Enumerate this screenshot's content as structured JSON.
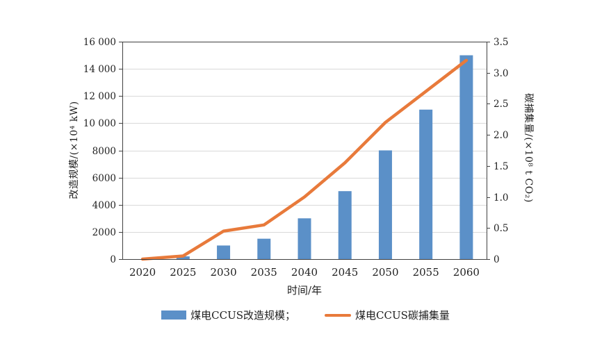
{
  "chart_data": {
    "type": "bar+line dual-axis combo",
    "categories": [
      "2020",
      "2025",
      "2030",
      "2035",
      "2040",
      "2045",
      "2050",
      "2055",
      "2060"
    ],
    "series": [
      {
        "name": "煤电CCUS改造规模；",
        "type": "bar",
        "axis": "left",
        "color": "#5B90C8",
        "values": [
          0,
          200,
          1000,
          1500,
          3000,
          5000,
          8000,
          11000,
          15000
        ]
      },
      {
        "name": "煤电CCUS碳捕集量",
        "type": "line",
        "axis": "right",
        "color": "#E87A3B",
        "values": [
          0,
          0.05,
          0.45,
          0.55,
          1.0,
          1.55,
          2.2,
          2.7,
          3.2
        ]
      }
    ],
    "xlabel": "时间/年",
    "left_axis": {
      "label": "改造规模/(×10⁴ kW)",
      "min": 0,
      "max": 16000,
      "tick_values": [
        0,
        2000,
        4000,
        6000,
        8000,
        10000,
        12000,
        14000,
        16000
      ],
      "tick_labels": [
        "0",
        "2000",
        "4000",
        "6000",
        "8000",
        "10 000",
        "12 000",
        "14 000",
        "16 000"
      ]
    },
    "right_axis": {
      "label": "碳捕集量/(×10⁸ t CO₂)",
      "min": 0,
      "max": 3.5,
      "tick_values": [
        0,
        0.5,
        1.0,
        1.5,
        2.0,
        2.5,
        3.0,
        3.5
      ],
      "tick_labels": [
        "0",
        "0.5",
        "1.0",
        "1.5",
        "2.0",
        "2.5",
        "3.0",
        "3.5"
      ]
    },
    "grid": true,
    "legend_position": "bottom",
    "colors": {
      "gridline": "#D9D9D9",
      "axis_line": "#3F3F3F",
      "text": "#1F1F1F",
      "background": "#FFFFFF"
    }
  }
}
